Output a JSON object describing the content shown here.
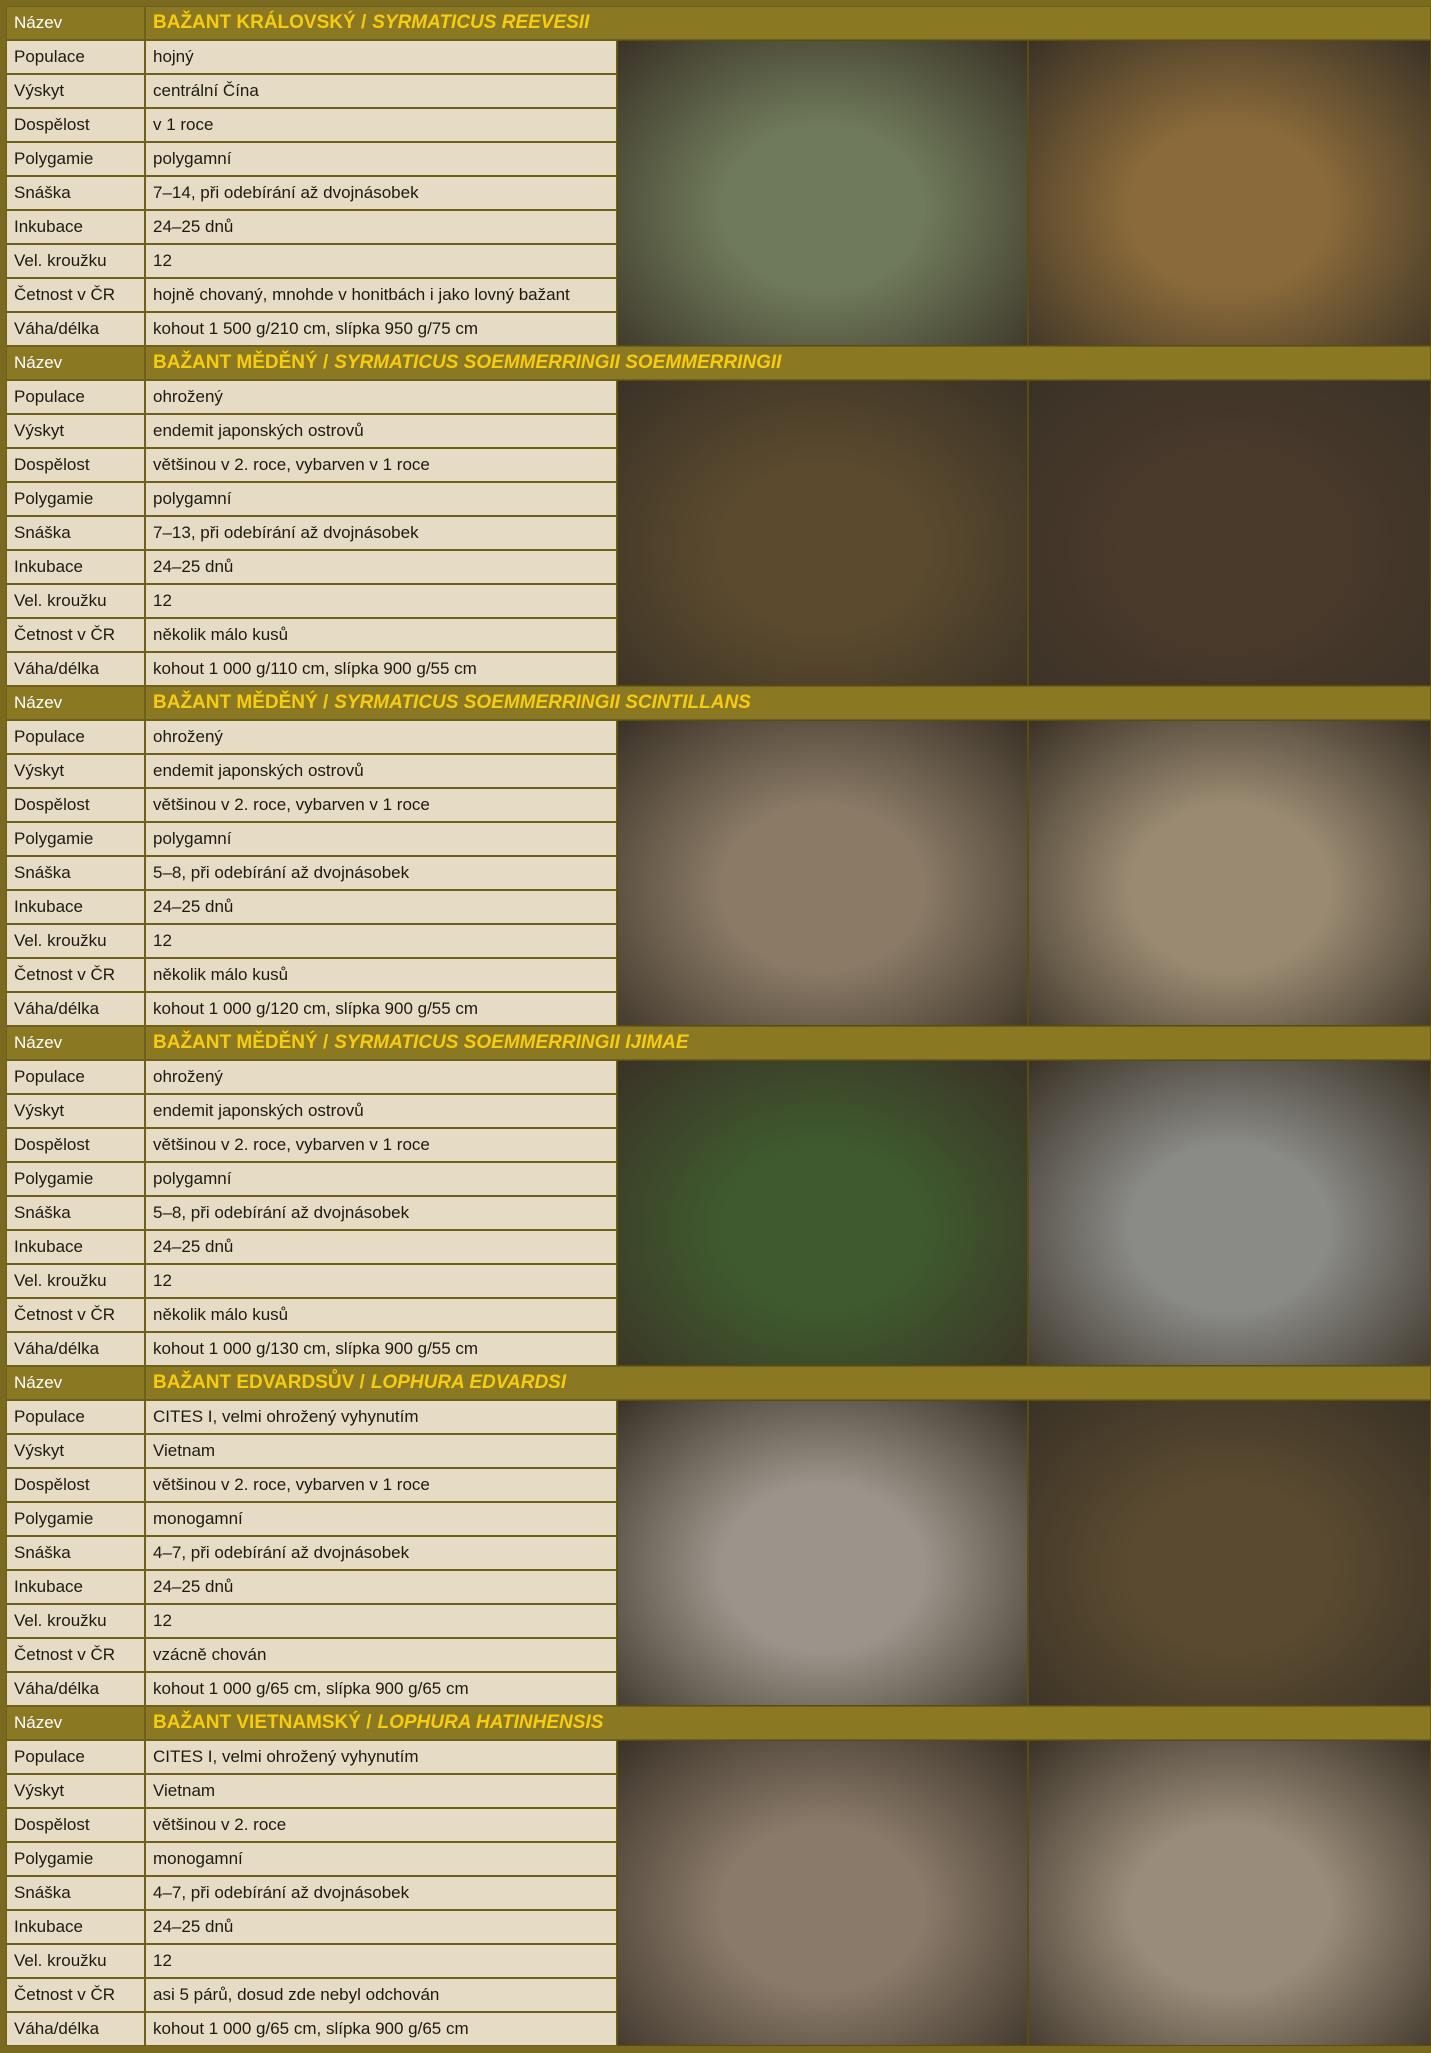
{
  "species": [
    {
      "header_label": "Název",
      "name": "BAŽANT KRÁLOVSKÝ /",
      "latin": "SYRMATICUS REEVESII",
      "rows": [
        [
          "Populace",
          "hojný"
        ],
        [
          "Výskyt",
          "centrální Čína"
        ],
        [
          "Dospělost",
          "v 1 roce"
        ],
        [
          "Polygamie",
          "polygamní"
        ],
        [
          "Snáška",
          "7–14, při odebírání až dvojnásobek"
        ],
        [
          "Inkubace",
          "24–25 dnů"
        ],
        [
          "Vel. kroužku",
          "12"
        ],
        [
          "Četnost v ČR",
          "hojně chovaný, mnohde v honitbách i jako lovný bažant"
        ],
        [
          "Váha/délka",
          "kohout 1 500 g/210 cm, slípka 950 g/75 cm"
        ]
      ]
    },
    {
      "header_label": "Název",
      "name": "BAŽANT MĚDĚNÝ /",
      "latin": "SYRMATICUS SOEMMERRINGII SOEMMERRINGII",
      "rows": [
        [
          "Populace",
          "ohrožený"
        ],
        [
          "Výskyt",
          "endemit japonských ostrovů"
        ],
        [
          "Dospělost",
          "většinou v 2. roce, vybarven v 1 roce"
        ],
        [
          "Polygamie",
          "polygamní"
        ],
        [
          "Snáška",
          "7–13, při odebírání až dvojnásobek"
        ],
        [
          "Inkubace",
          "24–25 dnů"
        ],
        [
          "Vel. kroužku",
          "12"
        ],
        [
          "Četnost v ČR",
          "několik málo kusů"
        ],
        [
          "Váha/délka",
          "kohout 1 000 g/110 cm, slípka 900 g/55 cm"
        ]
      ]
    },
    {
      "header_label": "Název",
      "name": "BAŽANT MĚDĚNÝ /",
      "latin": "SYRMATICUS SOEMMERRINGII SCINTILLANS",
      "rows": [
        [
          "Populace",
          "ohrožený"
        ],
        [
          "Výskyt",
          "endemit japonských ostrovů"
        ],
        [
          "Dospělost",
          "většinou v 2. roce, vybarven v 1 roce"
        ],
        [
          "Polygamie",
          "polygamní"
        ],
        [
          "Snáška",
          "5–8, při odebírání až dvojnásobek"
        ],
        [
          "Inkubace",
          "24–25 dnů"
        ],
        [
          "Vel. kroužku",
          "12"
        ],
        [
          "Četnost v ČR",
          "několik málo kusů"
        ],
        [
          "Váha/délka",
          "kohout 1 000 g/120 cm, slípka 900 g/55 cm"
        ]
      ]
    },
    {
      "header_label": "Název",
      "name": "BAŽANT MĚDĚNÝ /",
      "latin": "SYRMATICUS SOEMMERRINGII IJIMAE",
      "rows": [
        [
          "Populace",
          "ohrožený"
        ],
        [
          "Výskyt",
          "endemit japonských ostrovů"
        ],
        [
          "Dospělost",
          "většinou v 2. roce, vybarven v 1 roce"
        ],
        [
          "Polygamie",
          "polygamní"
        ],
        [
          "Snáška",
          "5–8, při odebírání až dvojnásobek"
        ],
        [
          "Inkubace",
          "24–25 dnů"
        ],
        [
          "Vel. kroužku",
          "12"
        ],
        [
          "Četnost v ČR",
          "několik málo kusů"
        ],
        [
          "Váha/délka",
          "kohout 1 000 g/130 cm, slípka 900 g/55 cm"
        ]
      ]
    },
    {
      "header_label": "Název",
      "name": "BAŽANT EDVARDSŮV /",
      "latin": "LOPHURA EDVARDSI",
      "rows": [
        [
          "Populace",
          "CITES I, velmi ohrožený vyhynutím"
        ],
        [
          "Výskyt",
          "Vietnam"
        ],
        [
          "Dospělost",
          "většinou v 2. roce, vybarven v 1 roce"
        ],
        [
          "Polygamie",
          "monogamní"
        ],
        [
          "Snáška",
          "4–7, při odebírání až dvojnásobek"
        ],
        [
          "Inkubace",
          "24–25 dnů"
        ],
        [
          "Vel. kroužku",
          "12"
        ],
        [
          "Četnost v ČR",
          "vzácně chován"
        ],
        [
          "Váha/délka",
          "kohout 1 000 g/65 cm, slípka 900 g/65 cm"
        ]
      ]
    },
    {
      "header_label": "Název",
      "name": "BAŽANT VIETNAMSKÝ /",
      "latin": "LOPHURA HATINHENSIS",
      "rows": [
        [
          "Populace",
          "CITES I, velmi ohrožený vyhynutím"
        ],
        [
          "Výskyt",
          "Vietnam"
        ],
        [
          "Dospělost",
          "většinou v 2. roce"
        ],
        [
          "Polygamie",
          "monogamní"
        ],
        [
          "Snáška",
          "4–7, při odebírání až dvojnásobek"
        ],
        [
          "Inkubace",
          "24–25 dnů"
        ],
        [
          "Vel. kroužku",
          "12"
        ],
        [
          "Četnost v ČR",
          "asi 5 párů, dosud zde nebyl odchován"
        ],
        [
          "Váha/délka",
          "kohout 1 000 g/65 cm, slípka 900 g/65 cm"
        ]
      ]
    }
  ]
}
